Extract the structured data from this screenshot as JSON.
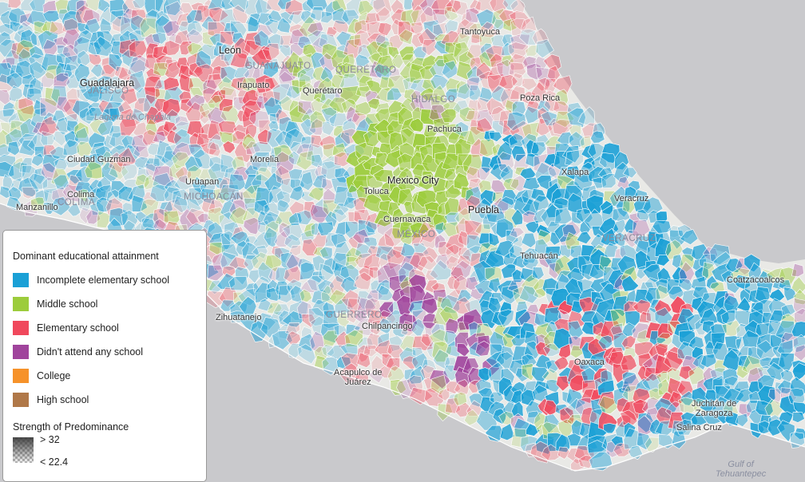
{
  "map": {
    "cities": [
      {
        "name": "León"
      },
      {
        "name": "Guadalajara"
      },
      {
        "name": "Irapuato"
      },
      {
        "name": "Querétaro"
      },
      {
        "name": "Tantoyuca"
      },
      {
        "name": "Poza Rica"
      },
      {
        "name": "Pachuca"
      },
      {
        "name": "Ciudad Guzman"
      },
      {
        "name": "Morelia"
      },
      {
        "name": "Uruapan"
      },
      {
        "name": "Colima"
      },
      {
        "name": "Manzanillo"
      },
      {
        "name": "Mexico City"
      },
      {
        "name": "Toluca"
      },
      {
        "name": "Cuernavaca"
      },
      {
        "name": "Puebla"
      },
      {
        "name": "Xalapa"
      },
      {
        "name": "Veracruz"
      },
      {
        "name": "Tehuacán"
      },
      {
        "name": "Coatzacoalcos"
      },
      {
        "name": "Zihuatanejo"
      },
      {
        "name": "Chilpancingo"
      },
      {
        "name": "Oaxaca"
      },
      {
        "name": "Salina Cruz"
      }
    ],
    "two_line_cities": [
      {
        "line1": "Acapulco de",
        "line2": "Juárez"
      },
      {
        "line1": "Juchitán de",
        "line2": "Zaragoza"
      }
    ],
    "states": [
      "GUANAJUATO",
      "QUERÉTARO",
      "JALISCO",
      "HIDALGO",
      "MICHOACÁN",
      "COLIMA",
      "MÉXICO",
      "VERACRUZ",
      "GUERRERO"
    ],
    "water": [
      "Laguna de Chapala"
    ],
    "water_two_line": {
      "line1": "Gulf of",
      "line2": "Tehuantepec"
    },
    "colors": {
      "incomplete_elementary": "#1aa0d6",
      "middle_school": "#9ccc3c",
      "elementary": "#f0485c",
      "no_school": "#a0449c",
      "college": "#f6922a",
      "high_school": "#b07848",
      "ocean": "#c9c9cc",
      "land": "#e9e9e6"
    }
  },
  "legend": {
    "title": "Dominant educational attainment",
    "items": [
      {
        "label": "Incomplete elementary school",
        "color": "#1aa0d6"
      },
      {
        "label": "Middle school",
        "color": "#9ccc3c"
      },
      {
        "label": "Elementary school",
        "color": "#f0485c"
      },
      {
        "label": "Didn't attend any school",
        "color": "#a0449c"
      },
      {
        "label": "College",
        "color": "#f6922a"
      },
      {
        "label": "High school",
        "color": "#b07848"
      }
    ],
    "strength_title": "Strength of Predominance",
    "strength_high": "> 32",
    "strength_low": "< 22.4"
  }
}
